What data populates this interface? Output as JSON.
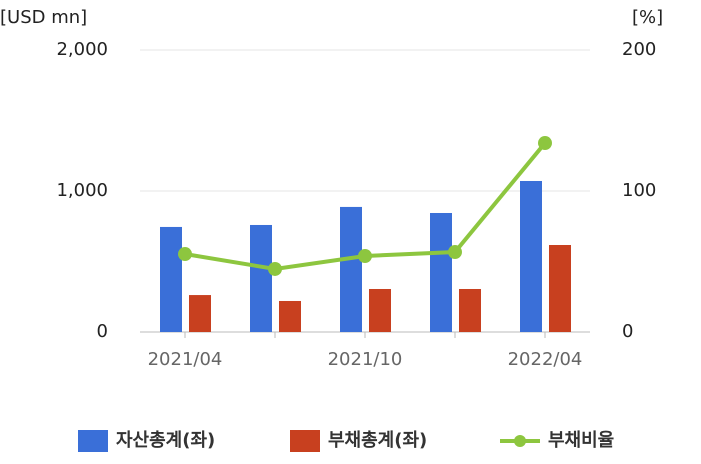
{
  "chart_data": {
    "type": "bar",
    "y_label": "[USD mn]",
    "y2_label": "[%]",
    "categories": [
      "2021/04",
      null,
      "2021/10",
      null,
      "2022/04"
    ],
    "series": [
      {
        "name": "자산총계(좌)",
        "color": "#3a6fd8",
        "values": [
          745,
          759,
          887,
          844,
          1071
        ]
      },
      {
        "name": "부채총계(좌)",
        "color": "#c8401f",
        "values": [
          262,
          220,
          305,
          305,
          617
        ]
      },
      {
        "name": "부채비율",
        "color": "#8dc63f",
        "type": "line",
        "axis": "y2",
        "values": [
          55.3,
          44.7,
          53.9,
          56.7,
          134
        ]
      }
    ],
    "ylim": [
      0,
      2000
    ],
    "yticks": [
      0,
      {
        "value": 1000,
        "label": "1,000"
      },
      {
        "value": 2000,
        "label": "2,000"
      }
    ],
    "y2lim": [
      0,
      200
    ],
    "y2ticks": [
      0,
      100,
      200
    ],
    "grid": true
  }
}
